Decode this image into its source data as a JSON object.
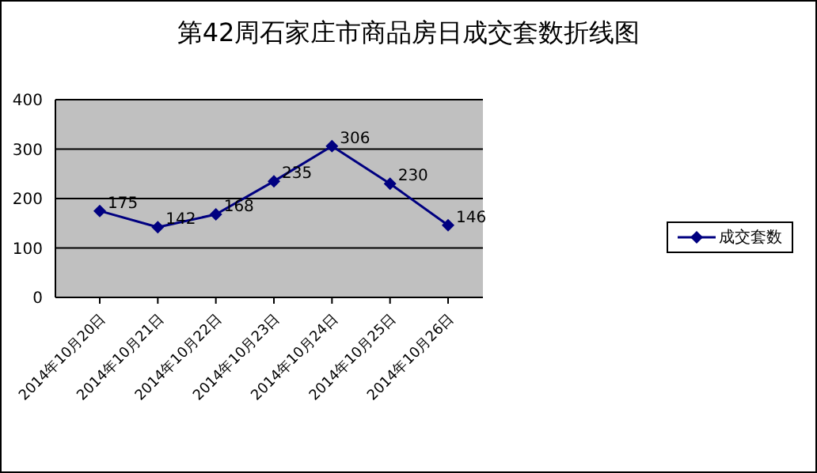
{
  "chart_data": {
    "type": "line",
    "title": "第42周石家庄市商品房日成交套数折线图",
    "categories": [
      "2014年10月20日",
      "2014年10月21日",
      "2014年10月22日",
      "2014年10月23日",
      "2014年10月24日",
      "2014年10月25日",
      "2014年10月26日"
    ],
    "series": [
      {
        "name": "成交套数",
        "color": "#000080",
        "values": [
          175,
          142,
          168,
          235,
          306,
          230,
          146
        ]
      }
    ],
    "ylim": [
      0,
      400
    ],
    "yticks": [
      0,
      100,
      200,
      300,
      400
    ],
    "grid": "y",
    "legend": "right",
    "marker": "diamond",
    "data_labels": true
  }
}
